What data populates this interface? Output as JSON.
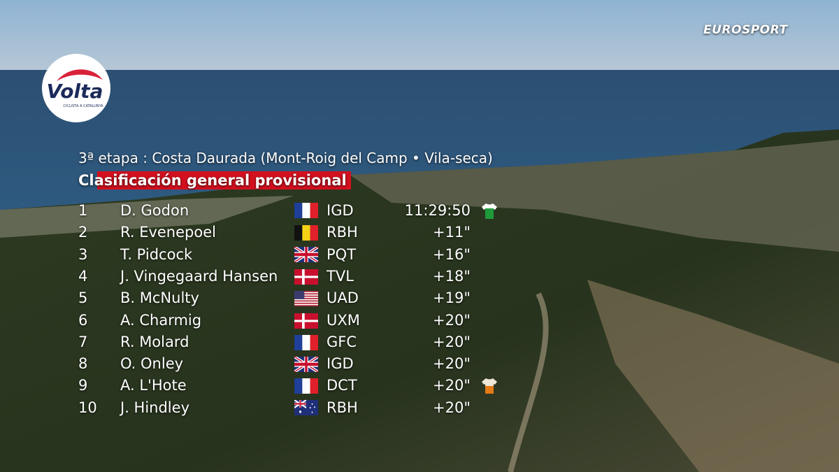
{
  "logo": {
    "name": "Volta",
    "tagline": "CICLISTA A CATALUNYA"
  },
  "broadcaster": "EUROSPORT",
  "stage": "3ª etapa : Costa Daurada (Mont-Roig del Camp • Vila-seca)",
  "title": "Clasificación general provisional",
  "rows": [
    [
      "1",
      "D. Godon",
      "IGD",
      "11:29:50"
    ],
    [
      "2",
      "R. Evenepoel",
      "RBH",
      "+11\""
    ],
    [
      "3",
      "T. Pidcock",
      "PQT",
      "+16\""
    ],
    [
      "4",
      "J. Vingegaard Hansen",
      "TVL",
      "+18\""
    ],
    [
      "5",
      "B. McNulty",
      "UAD",
      "+19\""
    ],
    [
      "6",
      "A. Charmig",
      "UXM",
      "+20\""
    ],
    [
      "7",
      "R. Molard",
      "GFC",
      "+20\""
    ],
    [
      "8",
      "O. Onley",
      "IGD",
      "+20\""
    ],
    [
      "9",
      "A. L'Hote",
      "DCT",
      "+20\""
    ],
    [
      "10",
      "J. Hindley",
      "RBH",
      "+20\""
    ]
  ]
}
